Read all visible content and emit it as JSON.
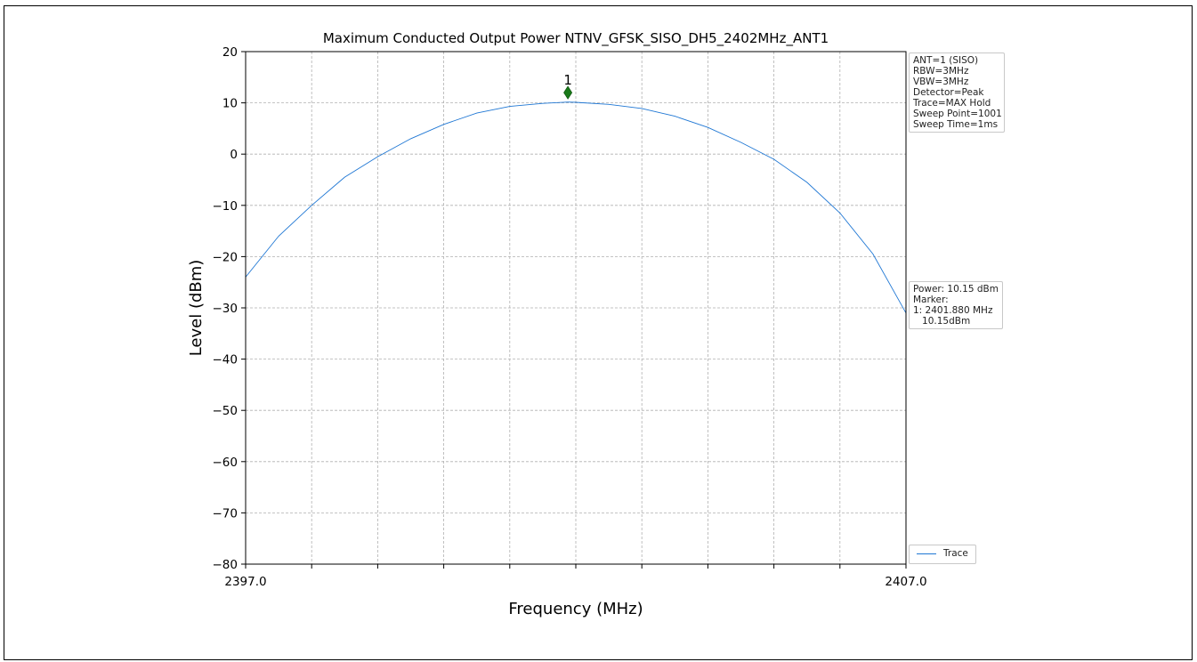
{
  "chart_data": {
    "type": "line",
    "title": "Maximum Conducted Output Power NTNV_GFSK_SISO_DH5_2402MHz_ANT1",
    "xlabel": "Frequency (MHz)",
    "ylabel": "Level (dBm)",
    "xlim": [
      2397.0,
      2407.0
    ],
    "ylim": [
      -80,
      20
    ],
    "x_ticklabels": [
      {
        "value": 2397.0,
        "label": "2397.0"
      },
      {
        "value": 2407.0,
        "label": "2407.0"
      }
    ],
    "y_ticks": [
      20,
      10,
      0,
      -10,
      -20,
      -30,
      -40,
      -50,
      -60,
      -70,
      -80
    ],
    "y_ticklabels": [
      "20",
      "10",
      "0",
      "−10",
      "−20",
      "−30",
      "−40",
      "−50",
      "−60",
      "−70",
      "−80"
    ],
    "x_minor_gridlines": [
      2397.0,
      2398.0,
      2399.0,
      2400.0,
      2401.0,
      2402.0,
      2403.0,
      2404.0,
      2405.0,
      2406.0,
      2407.0
    ],
    "grid": true,
    "series": [
      {
        "name": "Trace",
        "color": "#1f77d4",
        "x": [
          2397.0,
          2397.5,
          2398.0,
          2398.5,
          2399.0,
          2399.5,
          2400.0,
          2400.5,
          2401.0,
          2401.5,
          2401.88,
          2402.0,
          2402.5,
          2403.0,
          2403.5,
          2404.0,
          2404.5,
          2405.0,
          2405.5,
          2406.0,
          2406.5,
          2407.0
        ],
        "y": [
          -24.0,
          -16.0,
          -10.0,
          -4.5,
          -0.5,
          3.0,
          5.8,
          8.0,
          9.3,
          9.9,
          10.15,
          10.1,
          9.7,
          8.9,
          7.4,
          5.2,
          2.3,
          -1.0,
          -5.5,
          -11.5,
          -19.5,
          -31.0
        ]
      }
    ],
    "markers": [
      {
        "label": "1",
        "x": 2401.88,
        "y": 12.0,
        "color": "#1a7a1a"
      }
    ],
    "legend": {
      "entries": [
        "Trace"
      ],
      "placement": "lower-right outside"
    },
    "settings_text": [
      "ANT=1 (SISO)",
      "RBW=3MHz",
      "VBW=3MHz",
      "Detector=Peak",
      "Trace=MAX Hold",
      "Sweep Point=1001",
      "Sweep Time=1ms"
    ],
    "result_text": [
      "Power: 10.15 dBm",
      "Marker:",
      "1: 2401.880 MHz",
      "   10.15dBm"
    ]
  }
}
